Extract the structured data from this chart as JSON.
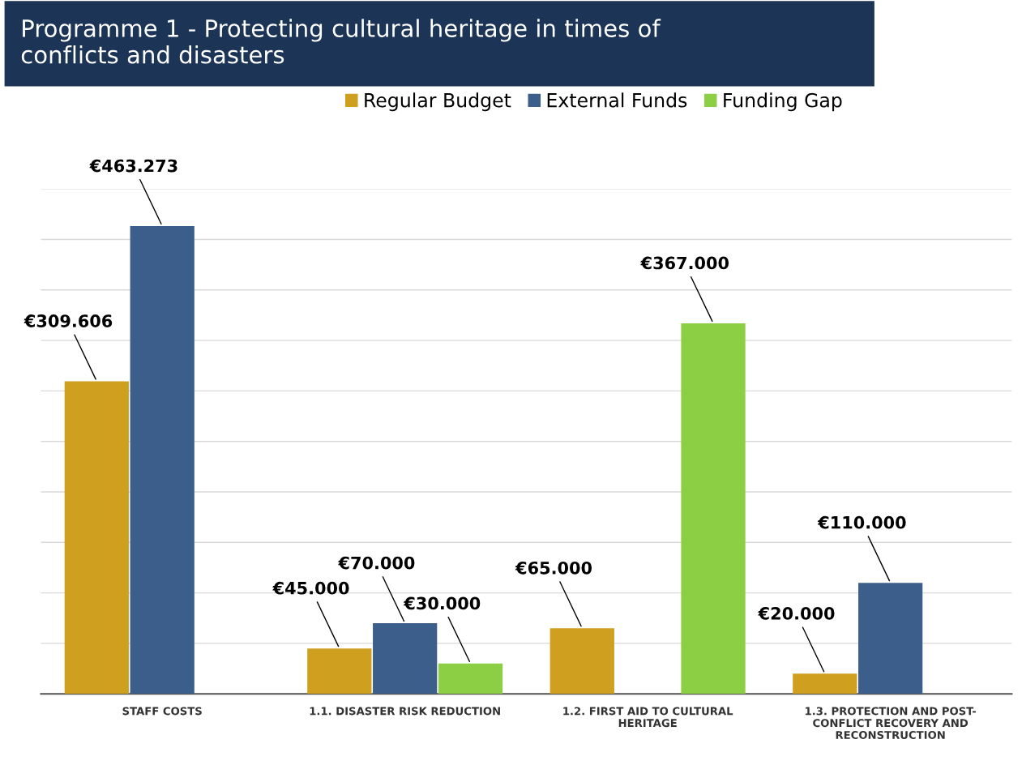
{
  "chart_data": {
    "type": "bar",
    "title": "Programme 1 - Protecting cultural heritage in times of\nconflicts and disasters",
    "categories": [
      "STAFF COSTS",
      "1.1. DISASTER RISK REDUCTION",
      "1.2. FIRST AID TO CULTURAL\nHERITAGE",
      "1.3. PROTECTION AND POST-\nCONFLICT RECOVERY AND\nRECONSTRUCTION"
    ],
    "series": [
      {
        "name": "Regular Budget",
        "color": "#cf9f1f",
        "values": [
          309606,
          45000,
          65000,
          20000
        ],
        "value_labels": [
          "€309.606",
          "€45.000",
          "€65.000",
          "€20.000"
        ]
      },
      {
        "name": "External Funds",
        "color": "#3b5f8a",
        "values": [
          463273,
          70000,
          null,
          110000
        ],
        "value_labels": [
          "€463.273",
          "€70.000",
          null,
          "€110.000"
        ]
      },
      {
        "name": "Funding Gap",
        "color": "#8ccf45",
        "values": [
          null,
          30000,
          367000,
          null
        ],
        "value_labels": [
          null,
          "€30.000",
          "€367.000",
          null
        ]
      }
    ],
    "ylim": [
      0,
      500000
    ],
    "yticks": [
      {
        "value": 0,
        "label": null
      },
      {
        "value": 50000,
        "label": null
      },
      {
        "value": 100000,
        "label": null
      },
      {
        "value": 150000,
        "label": null
      },
      {
        "value": 200000,
        "label": null
      },
      {
        "value": 250000,
        "label": null
      },
      {
        "value": 300000,
        "label": null
      },
      {
        "value": 350000,
        "label": null
      },
      {
        "value": 400000,
        "label": null
      },
      {
        "value": 450000,
        "label": null
      },
      {
        "value": 500000,
        "label": null
      }
    ],
    "grid": "y",
    "legend": "top",
    "tick_labels": "x"
  }
}
